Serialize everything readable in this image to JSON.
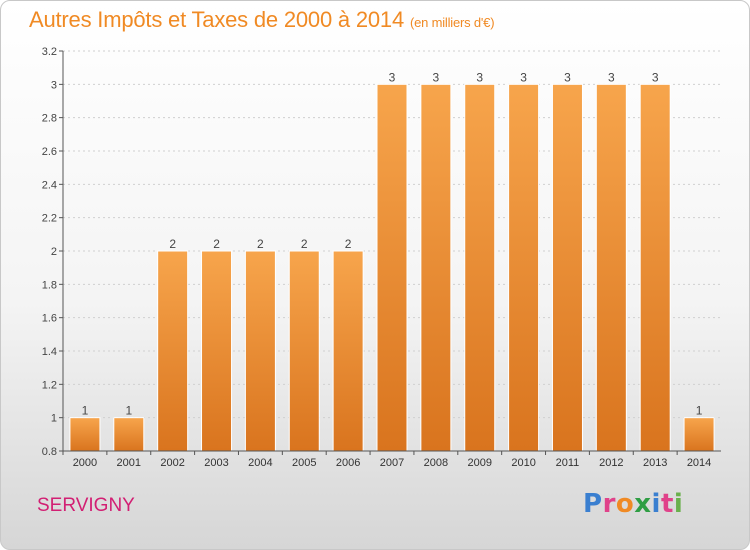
{
  "header": {
    "title": "Autres Impôts et Taxes de 2000 à 2014",
    "subtitle": "(en milliers d'€)"
  },
  "footer": {
    "commune": "SERVIGNY",
    "logo_letters": [
      "P",
      "r",
      "o",
      "x",
      "i",
      "t",
      "i"
    ],
    "logo_colors": [
      "#3a7fd0",
      "#e0428a",
      "#f08a24",
      "#2f9e44",
      "#3a7fd0",
      "#e0428a",
      "#6ab04c"
    ]
  },
  "colors": {
    "bar_light": "#f7a54c",
    "bar_dark": "#d9741e",
    "title": "#f08a24",
    "commune": "#d21f73",
    "grid": "#d0d0d0"
  },
  "chart_data": {
    "type": "bar",
    "categories": [
      "2000",
      "2001",
      "2002",
      "2003",
      "2004",
      "2005",
      "2006",
      "2007",
      "2008",
      "2009",
      "2010",
      "2011",
      "2012",
      "2013",
      "2014"
    ],
    "values": [
      1,
      1,
      2,
      2,
      2,
      2,
      2,
      3,
      3,
      3,
      3,
      3,
      3,
      3,
      1
    ],
    "data_labels": [
      "1",
      "1",
      "2",
      "2",
      "2",
      "2",
      "2",
      "3",
      "3",
      "3",
      "3",
      "3",
      "3",
      "3",
      "1"
    ],
    "ylim": [
      0.8,
      3.2
    ],
    "yticks": [
      0.8,
      1,
      1.2,
      1.4,
      1.6,
      1.8,
      2,
      2.2,
      2.4,
      2.6,
      2.8,
      3,
      3.2
    ],
    "ytick_labels": [
      "0.8",
      "1",
      "1.2",
      "1.4",
      "1.6",
      "1.8",
      "2",
      "2.2",
      "2.4",
      "2.6",
      "2.8",
      "3",
      "3.2"
    ],
    "grid": "horizontal dotted",
    "title": "Autres Impôts et Taxes de 2000 à 2014",
    "xlabel": "",
    "ylabel": ""
  }
}
